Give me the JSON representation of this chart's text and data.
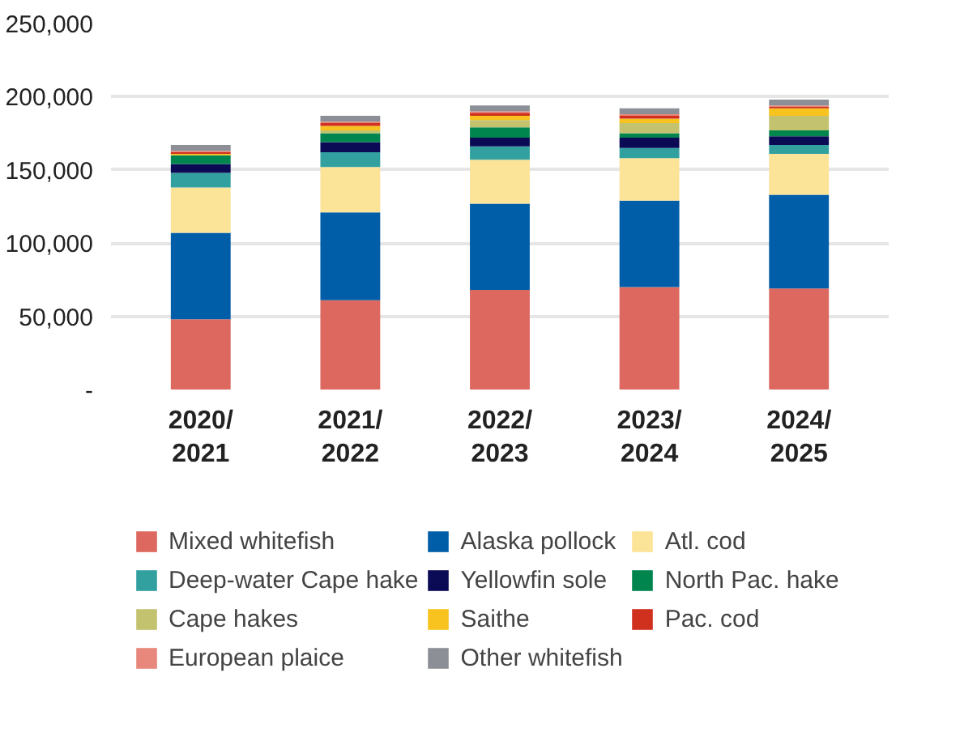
{
  "chart_data": {
    "type": "bar",
    "stacked": true,
    "categories": [
      "2020/\n2021",
      "2021/\n2022",
      "2022/\n2023",
      "2023/\n2024",
      "2024/\n2025"
    ],
    "ylim": [
      0,
      250000
    ],
    "yticks": [
      {
        "value": 0,
        "label": "-"
      },
      {
        "value": 50000,
        "label": "50,000"
      },
      {
        "value": 100000,
        "label": "100,000"
      },
      {
        "value": 150000,
        "label": "150,000"
      },
      {
        "value": 200000,
        "label": "200,000"
      },
      {
        "value": 250000,
        "label": "250,000"
      }
    ],
    "grid": "y",
    "legend": "bottom",
    "series": [
      {
        "name": "Mixed whitefish",
        "color": "#dd6860",
        "values": [
          48000,
          61000,
          68000,
          70000,
          69000
        ]
      },
      {
        "name": "Alaska pollock",
        "color": "#005ea8",
        "values": [
          59000,
          60000,
          59000,
          59000,
          64000
        ]
      },
      {
        "name": "Atl. cod",
        "color": "#fbe398",
        "values": [
          31000,
          31000,
          30000,
          29000,
          28000
        ]
      },
      {
        "name": "Deep-water Cape hake",
        "color": "#33a0a0",
        "values": [
          10000,
          10000,
          9000,
          7000,
          6000
        ]
      },
      {
        "name": "Yellowfin sole",
        "color": "#0a0a55",
        "values": [
          6000,
          7000,
          6000,
          7000,
          6000
        ]
      },
      {
        "name": "North Pac. hake",
        "color": "#00854f",
        "values": [
          6000,
          6000,
          7000,
          3000,
          4000
        ]
      },
      {
        "name": "Cape hakes",
        "color": "#c3c26e",
        "values": [
          0,
          2000,
          5000,
          7000,
          10000
        ]
      },
      {
        "name": "Saithe",
        "color": "#f8c21f",
        "values": [
          1000,
          3000,
          3000,
          3000,
          5000
        ]
      },
      {
        "name": "Pac. cod",
        "color": "#d0301e",
        "values": [
          1000,
          2000,
          2000,
          2000,
          1000
        ]
      },
      {
        "name": "European plaice",
        "color": "#e8877b",
        "values": [
          1000,
          1000,
          1000,
          1000,
          1000
        ]
      },
      {
        "name": "Other whitefish",
        "color": "#8c9096",
        "values": [
          4000,
          4000,
          4000,
          4000,
          4000
        ]
      }
    ]
  }
}
